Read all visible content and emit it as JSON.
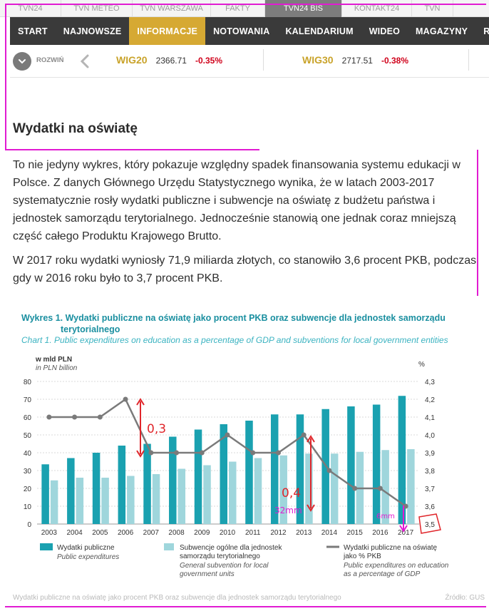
{
  "portals": [
    "TVN24",
    "TVN METEO",
    "TVN WARSZAWA",
    "FAKTY",
    "TVN24 BiS",
    "KONTAKT24",
    "TVN"
  ],
  "portal_active": "TVN24 BiS",
  "nav": [
    "START",
    "NAJNOWSZE",
    "INFORMACJE",
    "NOTOWANIA",
    "KALENDARIUM",
    "WIDEO",
    "MAGAZYNY",
    "RAPO"
  ],
  "nav_active": "INFORMACJE",
  "ticker": {
    "expand_label": "ROZWIŃ",
    "quotes": [
      {
        "name": "WIG20",
        "value": "2366.71",
        "change": "-0.35%"
      },
      {
        "name": "WIG30",
        "value": "2717.51",
        "change": "-0.38%"
      }
    ]
  },
  "article": {
    "title": "Wydatki na oświatę",
    "paragraphs": [
      "To nie jedyny wykres, który pokazuje względny spadek finansowania systemu edukacji w Polsce. Z danych Głównego Urzędu Statystycznego wynika, że w latach 2003-2017 systematycznie rosły wydatki publiczne i subwencje na oświatę z budżetu państwa i jednostek samorządu terytorialnego. Jednocześnie stanowią one jednak coraz mniejszą część całego Produktu Krajowego Brutto.",
      "W 2017 roku wydatki wyniosły 71,9 miliarda złotych, co stanowiło 3,6 procent PKB, podczas gdy w 2016 roku było to 3,7 procent PKB."
    ]
  },
  "chart_data": {
    "type": "bar",
    "title": "Wykres 1. Wydatki publiczne na oświatę jako procent PKB oraz subwencje dla jednostek samorządu terytorialnego",
    "subtitle": "Chart 1. Public expenditures on education as a percentage of GDP and subventions for local government entities",
    "ylabel": "w mld PLN",
    "ylabel_en": "in PLN billion",
    "y2label": "%",
    "ylim": [
      0,
      80
    ],
    "y2lim": [
      3.5,
      4.3
    ],
    "yticks": [
      "0",
      "10",
      "20",
      "30",
      "40",
      "50",
      "60",
      "70",
      "80"
    ],
    "y2ticks": [
      "3,5",
      "3,6",
      "3,7",
      "3,8",
      "3,9",
      "4,0",
      "4,1",
      "4,2",
      "4,3"
    ],
    "categories": [
      "2003",
      "2004",
      "2005",
      "2006",
      "2007",
      "2008",
      "2009",
      "2010",
      "2011",
      "2012",
      "2013",
      "2014",
      "2015",
      "2016",
      "2017"
    ],
    "series": [
      {
        "name": "Wydatki publiczne",
        "name_en": "Public expenditures",
        "type": "bar",
        "color": "#1aa1b0",
        "values": [
          33.5,
          37,
          40,
          44,
          45,
          49,
          53,
          56,
          58,
          61.5,
          61.5,
          64.5,
          66,
          67,
          71.9
        ]
      },
      {
        "name": "Subwencje ogólne dla jednostek samorządu terytorialnego",
        "name_en": "General subvention for local government units",
        "type": "bar",
        "color": "#9fd6dc",
        "values": [
          24.5,
          26,
          26,
          27,
          28,
          31,
          33,
          35,
          37,
          38.5,
          39.5,
          39.5,
          40.5,
          41.5,
          42
        ]
      },
      {
        "name": "Wydatki publiczne na oświatę jako % PKB",
        "name_en": "Public expenditures on education as a percentage of GDP",
        "type": "line",
        "axis": "right",
        "color": "#7a7a7a",
        "values": [
          4.1,
          4.1,
          4.1,
          4.2,
          3.9,
          3.9,
          3.9,
          4.0,
          3.9,
          3.9,
          4.0,
          3.8,
          3.7,
          3.7,
          3.6
        ]
      }
    ],
    "source_caption": "Wydatki publiczne na oświatę jako procent PKB oraz subwencje dla jednostek samorządu terytorialnego",
    "source": "Źródło: GUS",
    "annotations": [
      "0,3",
      "0,4",
      "32mm",
      "6mm"
    ],
    "annotation_color": "#e11bd2",
    "annotation_red": "#e0262b"
  },
  "colors": {
    "nav_bg": "#3a3a3a",
    "nav_active": "#d6a933",
    "quote_name": "#c9a32a",
    "quote_change": "#d0021b",
    "chart_title": "#1a8fa0",
    "chart_subtitle": "#3bb3c1"
  }
}
